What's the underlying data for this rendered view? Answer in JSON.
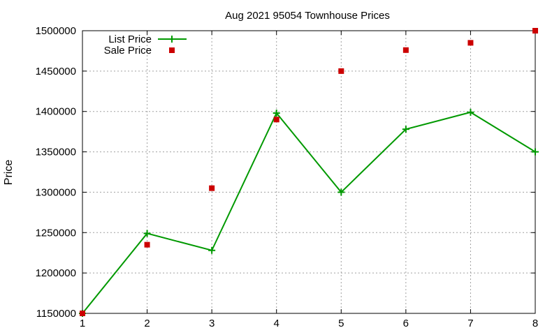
{
  "chart_data": {
    "type": "line",
    "title": "Aug 2021 95054 Townhouse Prices",
    "xlabel": "",
    "ylabel": "Price",
    "xlim": [
      1,
      8
    ],
    "ylim": [
      1150000,
      1500000
    ],
    "x_ticks": [
      "1",
      "2",
      "3",
      "4",
      "5",
      "6",
      "7",
      "8"
    ],
    "y_ticks": [
      "1150000",
      "1200000",
      "1250000",
      "1300000",
      "1350000",
      "1400000",
      "1450000",
      "1500000"
    ],
    "grid": true,
    "legend_position": "top-left",
    "series": [
      {
        "name": "List Price",
        "style": "line with plus markers",
        "color": "#009900",
        "x": [
          1,
          2,
          3,
          4,
          5,
          6,
          7,
          8
        ],
        "y": [
          1150000,
          1249000,
          1228000,
          1398000,
          1300000,
          1378000,
          1399000,
          1350000
        ]
      },
      {
        "name": "Sale Price",
        "style": "square markers",
        "color": "#cc0000",
        "x": [
          1,
          2,
          3,
          4,
          5,
          6,
          7,
          8
        ],
        "y": [
          1150000,
          1235000,
          1305000,
          1390000,
          1450000,
          1476000,
          1485000,
          1500000
        ]
      }
    ]
  }
}
